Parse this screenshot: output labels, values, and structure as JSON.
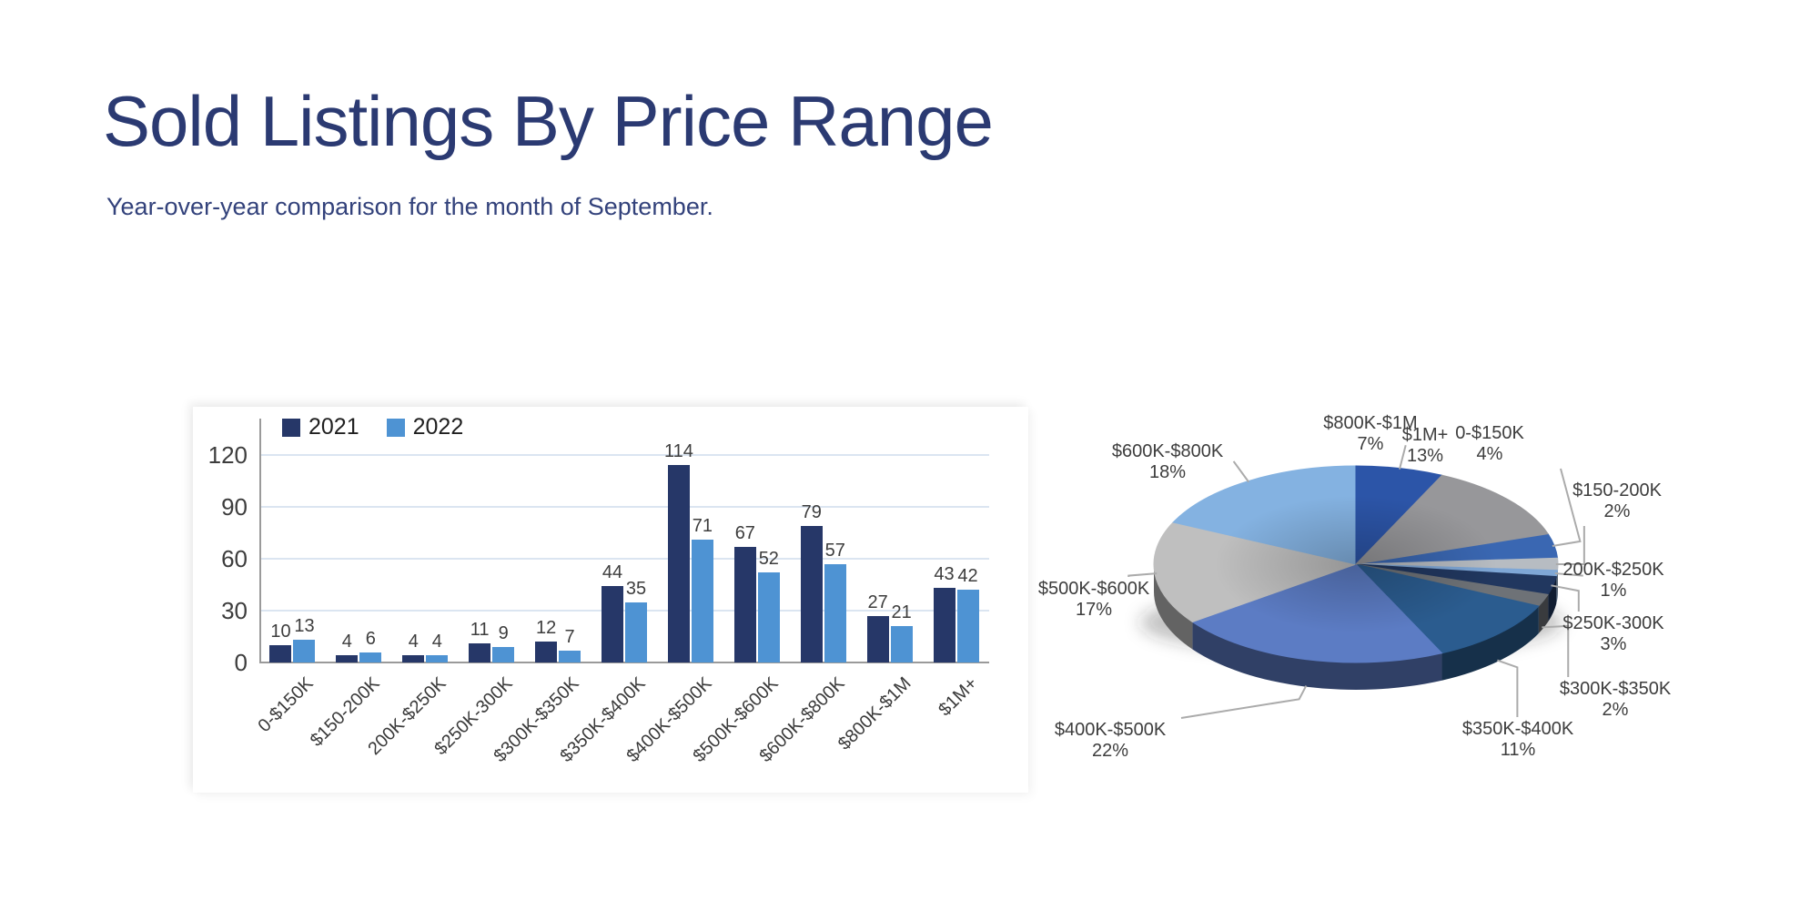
{
  "page": {
    "title": "Sold Listings By Price Range",
    "subtitle": "Year-over-year comparison for the month of September."
  },
  "colors": {
    "title_text": "#2B3A72",
    "axis": "#9a9a9a",
    "gridline": "#dbe5f1",
    "chart_text": "#3d3d3d",
    "leader_line": "#ababab"
  },
  "chart_data": [
    {
      "type": "bar",
      "title": "",
      "categories": [
        "0-$150K",
        "$150-200K",
        "200K-$250K",
        "$250K-300K",
        "$300K-$350K",
        "$350K-$400K",
        "$400K-$500K",
        "$500K-$600K",
        "$600K-$800K",
        "$800K-$1M",
        "$1M+"
      ],
      "series": [
        {
          "name": "2021",
          "color": "#263768",
          "values": [
            10,
            4,
            4,
            11,
            12,
            44,
            114,
            67,
            79,
            27,
            43
          ]
        },
        {
          "name": "2022",
          "color": "#4E93D3",
          "values": [
            13,
            6,
            4,
            9,
            7,
            35,
            71,
            52,
            57,
            21,
            42
          ]
        }
      ],
      "xlabel": "",
      "ylabel": "",
      "ylim": [
        0,
        120
      ],
      "yticks": [
        0,
        30,
        60,
        90,
        120
      ],
      "grid": true,
      "legend_position": "top-left-inside",
      "data_labels": true
    },
    {
      "type": "pie",
      "style": "3d",
      "start_at_top_category": "$800K-$1M",
      "slices": [
        {
          "label": "0-$150K",
          "pct": 4,
          "pct_text": "4%",
          "color": "#3A67B2"
        },
        {
          "label": "$150-200K",
          "pct": 2,
          "pct_text": "2%",
          "color": "#B7BCC2"
        },
        {
          "label": "200K-$250K",
          "pct": 1,
          "pct_text": "1%",
          "color": "#7FA7D6"
        },
        {
          "label": "$250K-300K",
          "pct": 3,
          "pct_text": "3%",
          "color": "#21375F"
        },
        {
          "label": "$300K-$350K",
          "pct": 2,
          "pct_text": "2%",
          "color": "#6E7277"
        },
        {
          "label": "$350K-$400K",
          "pct": 11,
          "pct_text": "11%",
          "color": "#2B5C8F"
        },
        {
          "label": "$400K-$500K",
          "pct": 22,
          "pct_text": "22%",
          "color": "#5C7CC4"
        },
        {
          "label": "$500K-$600K",
          "pct": 17,
          "pct_text": "17%",
          "color": "#BFBFBF"
        },
        {
          "label": "$600K-$800K",
          "pct": 18,
          "pct_text": "18%",
          "color": "#84B2E1"
        },
        {
          "label": "$800K-$1M",
          "pct": 7,
          "pct_text": "7%",
          "color": "#2C55A8"
        },
        {
          "label": "$1M+",
          "pct": 13,
          "pct_text": "13%",
          "color": "#97979A"
        }
      ]
    }
  ]
}
